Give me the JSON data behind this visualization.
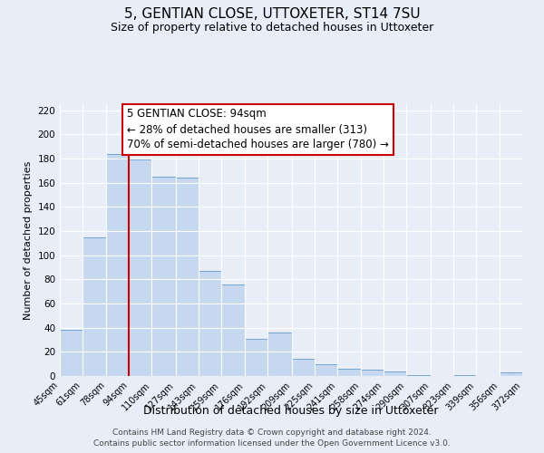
{
  "title": "5, GENTIAN CLOSE, UTTOXETER, ST14 7SU",
  "subtitle": "Size of property relative to detached houses in Uttoxeter",
  "xlabel": "Distribution of detached houses by size in Uttoxeter",
  "ylabel": "Number of detached properties",
  "bin_labels": [
    "45sqm",
    "61sqm",
    "78sqm",
    "94sqm",
    "110sqm",
    "127sqm",
    "143sqm",
    "159sqm",
    "176sqm",
    "192sqm",
    "209sqm",
    "225sqm",
    "241sqm",
    "258sqm",
    "274sqm",
    "290sqm",
    "307sqm",
    "323sqm",
    "339sqm",
    "356sqm",
    "372sqm"
  ],
  "bin_edges": [
    45,
    61,
    78,
    94,
    110,
    127,
    143,
    159,
    176,
    192,
    209,
    225,
    241,
    258,
    274,
    290,
    307,
    323,
    339,
    356,
    372
  ],
  "bar_heights": [
    38,
    115,
    184,
    179,
    165,
    164,
    87,
    76,
    31,
    36,
    14,
    10,
    6,
    5,
    4,
    1,
    0,
    1,
    0,
    3
  ],
  "bar_color": "#c5d8f0",
  "bar_edge_color": "#6699cc",
  "property_line_x": 94,
  "annotation_line1": "5 GENTIAN CLOSE: 94sqm",
  "annotation_line2": "← 28% of detached houses are smaller (313)",
  "annotation_line3": "70% of semi-detached houses are larger (780) →",
  "ylim": [
    0,
    225
  ],
  "yticks": [
    0,
    20,
    40,
    60,
    80,
    100,
    120,
    140,
    160,
    180,
    200,
    220
  ],
  "background_color": "#e8eef8",
  "plot_background_color": "#e8eef8",
  "footer_line1": "Contains HM Land Registry data © Crown copyright and database right 2024.",
  "footer_line2": "Contains public sector information licensed under the Open Government Licence v3.0.",
  "title_fontsize": 11,
  "subtitle_fontsize": 9,
  "xlabel_fontsize": 9,
  "ylabel_fontsize": 8,
  "annotation_fontsize": 8.5,
  "footer_fontsize": 6.5,
  "grid_color": "#ffffff",
  "vline_color": "#cc0000"
}
